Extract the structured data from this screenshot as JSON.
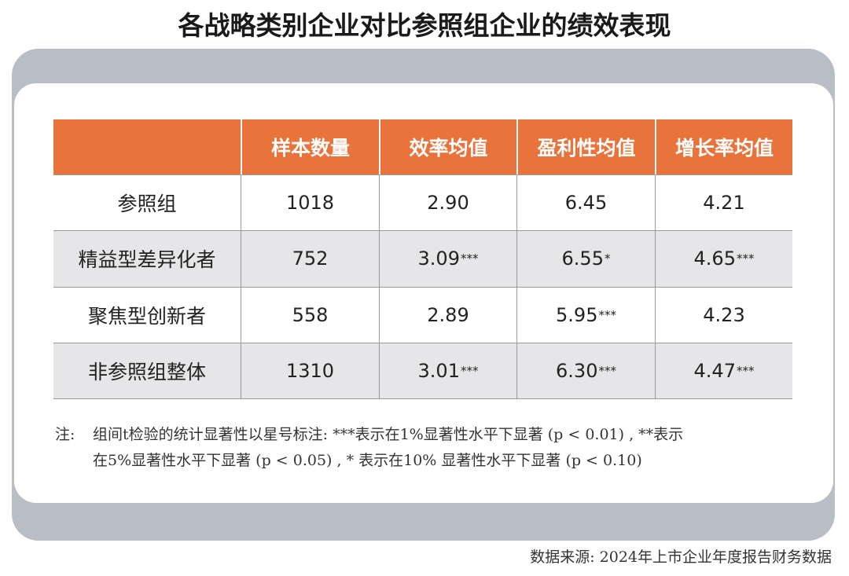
{
  "header": {
    "title": "各战略类别企业对比参照组企业的绩效表现"
  },
  "table": {
    "columns": [
      "样本数量",
      "效率均值",
      "盈利性均值",
      "增长率均值"
    ],
    "rows": [
      {
        "label": "参照组",
        "cells": [
          {
            "value": "1018"
          },
          {
            "value": "2.90"
          },
          {
            "value": "6.45"
          },
          {
            "value": "4.21"
          }
        ]
      },
      {
        "label": "精益型差异化者",
        "cells": [
          {
            "value": "752"
          },
          {
            "value": "3.09",
            "sig": "***"
          },
          {
            "value": "6.55",
            "sig": "*"
          },
          {
            "value": "4.65",
            "sig": "***"
          }
        ]
      },
      {
        "label": "聚焦型创新者",
        "cells": [
          {
            "value": "558"
          },
          {
            "value": "2.89"
          },
          {
            "value": "5.95",
            "sig": "***"
          },
          {
            "value": "4.23"
          }
        ]
      },
      {
        "label": "非参照组整体",
        "cells": [
          {
            "value": "1310"
          },
          {
            "value": "3.01",
            "sig": "***"
          },
          {
            "value": "6.30",
            "sig": "***"
          },
          {
            "value": "4.47",
            "sig": "***"
          }
        ]
      }
    ]
  },
  "note": {
    "label": "注:",
    "lines": [
      "组间t检验的统计显著性以星号标注: ***表示在1%显著性水平下显著 (p < 0.01) , **表示",
      "在5%显著性水平下显著 (p < 0.05) , * 表示在10% 显著性水平下显著 (p < 0.10)"
    ]
  },
  "source": "数据来源: 2024年上市企业年度报告财务数据"
}
